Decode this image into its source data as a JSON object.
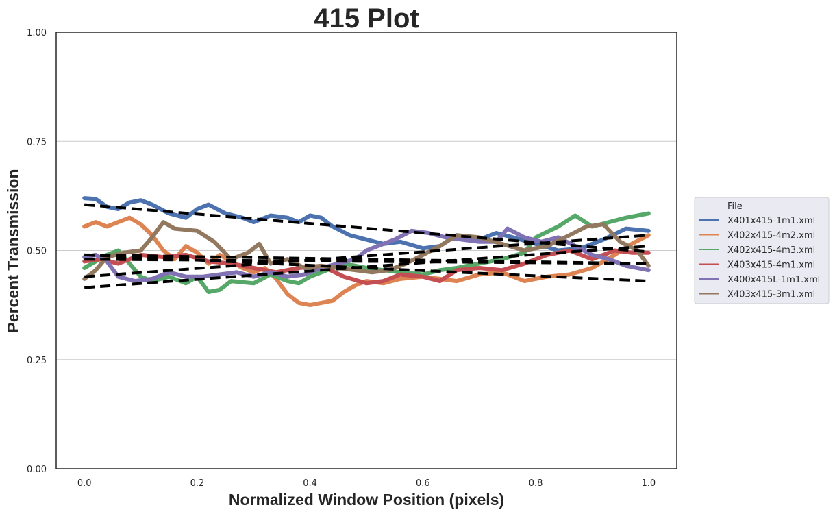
{
  "chart_data": {
    "type": "line",
    "title": "415 Plot",
    "xlabel": "Normalized Window Position (pixels)",
    "ylabel": "Percent Transmission",
    "xlim": [
      -0.05,
      1.05
    ],
    "ylim": [
      0.0,
      1.0
    ],
    "x_ticks": [
      0.0,
      0.2,
      0.4,
      0.6,
      0.8,
      1.0
    ],
    "x_tick_labels": [
      "0.0",
      "0.2",
      "0.4",
      "0.6",
      "0.8",
      "1.0"
    ],
    "y_ticks": [
      0.0,
      0.25,
      0.5,
      0.75,
      1.0
    ],
    "y_tick_labels": [
      "0.00",
      "0.25",
      "0.50",
      "0.75",
      "1.00"
    ],
    "grid": "horizontal",
    "legend": {
      "title": "File",
      "placement": "right-outside"
    },
    "series": [
      {
        "name": "X401x415-1m1.xml",
        "color": "#4c72b0",
        "x": [
          0.0,
          0.02,
          0.04,
          0.06,
          0.08,
          0.1,
          0.12,
          0.15,
          0.18,
          0.2,
          0.22,
          0.25,
          0.28,
          0.3,
          0.33,
          0.36,
          0.38,
          0.4,
          0.42,
          0.44,
          0.47,
          0.5,
          0.53,
          0.56,
          0.6,
          0.63,
          0.66,
          0.7,
          0.73,
          0.76,
          0.8,
          0.84,
          0.88,
          0.92,
          0.96,
          1.0
        ],
        "y": [
          0.62,
          0.618,
          0.6,
          0.595,
          0.61,
          0.615,
          0.605,
          0.585,
          0.575,
          0.595,
          0.605,
          0.585,
          0.575,
          0.565,
          0.58,
          0.575,
          0.565,
          0.58,
          0.575,
          0.555,
          0.535,
          0.525,
          0.515,
          0.52,
          0.505,
          0.51,
          0.535,
          0.525,
          0.54,
          0.53,
          0.515,
          0.5,
          0.505,
          0.525,
          0.55,
          0.545
        ],
        "trend": [
          0.605,
          0.497
        ]
      },
      {
        "name": "X402x415-4m2.xml",
        "color": "#dd8452",
        "x": [
          0.0,
          0.02,
          0.04,
          0.06,
          0.08,
          0.1,
          0.12,
          0.14,
          0.16,
          0.18,
          0.2,
          0.22,
          0.24,
          0.26,
          0.28,
          0.3,
          0.32,
          0.34,
          0.36,
          0.38,
          0.4,
          0.42,
          0.44,
          0.46,
          0.48,
          0.5,
          0.53,
          0.56,
          0.6,
          0.63,
          0.66,
          0.7,
          0.74,
          0.78,
          0.82,
          0.86,
          0.9,
          0.94,
          0.97,
          1.0
        ],
        "y": [
          0.555,
          0.565,
          0.555,
          0.565,
          0.575,
          0.56,
          0.535,
          0.5,
          0.48,
          0.51,
          0.495,
          0.47,
          0.49,
          0.475,
          0.46,
          0.45,
          0.46,
          0.435,
          0.4,
          0.38,
          0.375,
          0.38,
          0.385,
          0.405,
          0.42,
          0.43,
          0.425,
          0.435,
          0.44,
          0.435,
          0.43,
          0.445,
          0.45,
          0.43,
          0.44,
          0.445,
          0.46,
          0.49,
          0.515,
          0.535
        ],
        "trend": [
          0.49,
          0.47
        ]
      },
      {
        "name": "X402x415-4m3.xml",
        "color": "#55a868",
        "x": [
          0.0,
          0.02,
          0.04,
          0.06,
          0.08,
          0.1,
          0.12,
          0.15,
          0.18,
          0.2,
          0.22,
          0.24,
          0.26,
          0.3,
          0.33,
          0.36,
          0.38,
          0.4,
          0.43,
          0.46,
          0.5,
          0.53,
          0.56,
          0.6,
          0.63,
          0.66,
          0.7,
          0.74,
          0.78,
          0.8,
          0.84,
          0.87,
          0.9,
          0.93,
          0.96,
          1.0
        ],
        "y": [
          0.46,
          0.475,
          0.49,
          0.5,
          0.47,
          0.44,
          0.43,
          0.44,
          0.425,
          0.44,
          0.405,
          0.41,
          0.43,
          0.425,
          0.445,
          0.43,
          0.425,
          0.44,
          0.455,
          0.47,
          0.46,
          0.455,
          0.45,
          0.445,
          0.455,
          0.46,
          0.47,
          0.48,
          0.495,
          0.53,
          0.555,
          0.58,
          0.555,
          0.565,
          0.575,
          0.585
        ],
        "trend": [
          0.44,
          0.535
        ]
      },
      {
        "name": "X403x415-4m1.xml",
        "color": "#c44e52",
        "x": [
          0.0,
          0.03,
          0.06,
          0.1,
          0.14,
          0.18,
          0.22,
          0.26,
          0.3,
          0.34,
          0.38,
          0.42,
          0.46,
          0.5,
          0.53,
          0.56,
          0.6,
          0.63,
          0.66,
          0.7,
          0.74,
          0.78,
          0.82,
          0.86,
          0.9,
          0.94,
          0.97,
          1.0
        ],
        "y": [
          0.475,
          0.48,
          0.47,
          0.49,
          0.485,
          0.49,
          0.475,
          0.47,
          0.46,
          0.45,
          0.46,
          0.465,
          0.44,
          0.425,
          0.43,
          0.445,
          0.44,
          0.43,
          0.455,
          0.46,
          0.455,
          0.47,
          0.49,
          0.5,
          0.48,
          0.5,
          0.495,
          0.495
        ],
        "trend": [
          0.48,
          0.47
        ]
      },
      {
        "name": "X400x415L-1m1.xml",
        "color": "#8172b3",
        "x": [
          0.0,
          0.02,
          0.04,
          0.06,
          0.09,
          0.12,
          0.15,
          0.18,
          0.21,
          0.24,
          0.27,
          0.3,
          0.33,
          0.36,
          0.39,
          0.42,
          0.45,
          0.48,
          0.5,
          0.52,
          0.55,
          0.58,
          0.61,
          0.64,
          0.67,
          0.7,
          0.73,
          0.75,
          0.78,
          0.81,
          0.84,
          0.87,
          0.9,
          0.93,
          0.96,
          1.0
        ],
        "y": [
          0.485,
          0.49,
          0.475,
          0.44,
          0.43,
          0.435,
          0.45,
          0.44,
          0.44,
          0.445,
          0.45,
          0.44,
          0.45,
          0.44,
          0.445,
          0.46,
          0.47,
          0.48,
          0.5,
          0.51,
          0.525,
          0.545,
          0.54,
          0.53,
          0.525,
          0.52,
          0.52,
          0.55,
          0.53,
          0.52,
          0.53,
          0.51,
          0.49,
          0.48,
          0.465,
          0.455
        ],
        "trend": [
          0.415,
          0.51
        ]
      },
      {
        "name": "X403x415-3m1.xml",
        "color": "#937860",
        "x": [
          0.0,
          0.02,
          0.04,
          0.07,
          0.1,
          0.12,
          0.14,
          0.16,
          0.2,
          0.23,
          0.26,
          0.29,
          0.31,
          0.33,
          0.36,
          0.39,
          0.42,
          0.45,
          0.48,
          0.51,
          0.54,
          0.57,
          0.6,
          0.63,
          0.66,
          0.7,
          0.74,
          0.78,
          0.82,
          0.86,
          0.89,
          0.92,
          0.95,
          0.98,
          1.0
        ],
        "y": [
          0.435,
          0.455,
          0.485,
          0.495,
          0.5,
          0.53,
          0.565,
          0.55,
          0.545,
          0.52,
          0.48,
          0.495,
          0.515,
          0.47,
          0.48,
          0.46,
          0.465,
          0.46,
          0.455,
          0.45,
          0.455,
          0.47,
          0.49,
          0.51,
          0.535,
          0.53,
          0.515,
          0.5,
          0.51,
          0.535,
          0.555,
          0.56,
          0.52,
          0.5,
          0.465
        ],
        "trend": [
          0.49,
          0.43
        ]
      }
    ]
  }
}
